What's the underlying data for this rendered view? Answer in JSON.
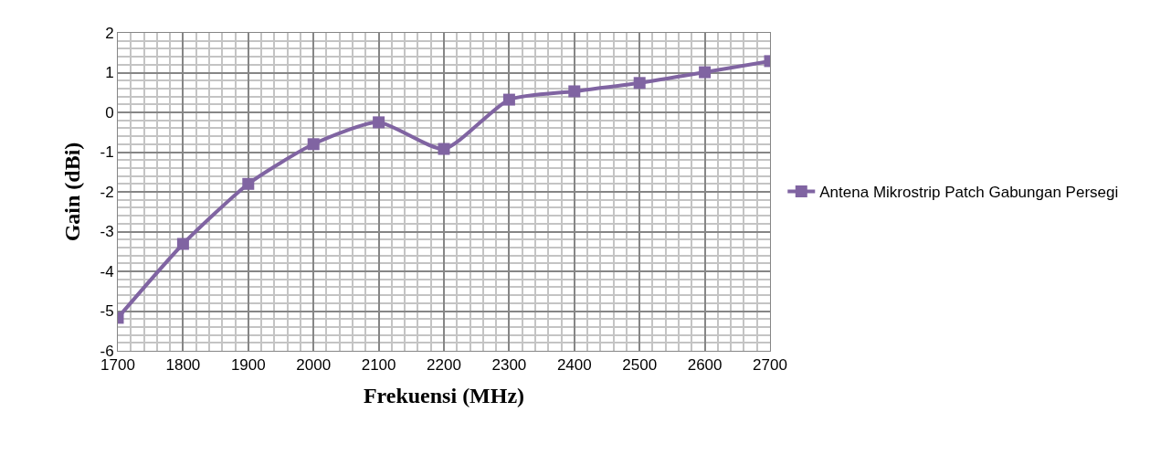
{
  "chart_data": {
    "type": "line",
    "xlabel": "Frekuensi (MHz)",
    "ylabel": "Gain (dBi)",
    "x": [
      1700,
      1800,
      1900,
      2000,
      2100,
      2200,
      2300,
      2400,
      2500,
      2600,
      2700
    ],
    "series": [
      {
        "name": "Antena Mikrostrip Patch Gabungan Persegi",
        "color": "#8064a2",
        "values": [
          -5.17,
          -3.31,
          -1.8,
          -0.8,
          -0.25,
          -0.92,
          0.32,
          0.53,
          0.74,
          1.01,
          1.29
        ]
      }
    ],
    "xlim": [
      1700,
      2700
    ],
    "xticks": [
      1700,
      1800,
      1900,
      2000,
      2100,
      2200,
      2300,
      2400,
      2500,
      2600,
      2700
    ],
    "ylim": [
      -6,
      2
    ],
    "yticks": [
      -6,
      -5,
      -4,
      -3,
      -2,
      -1,
      0,
      1,
      2
    ],
    "grid": true,
    "legend": "right",
    "marker": "square",
    "line_style": "solid"
  }
}
